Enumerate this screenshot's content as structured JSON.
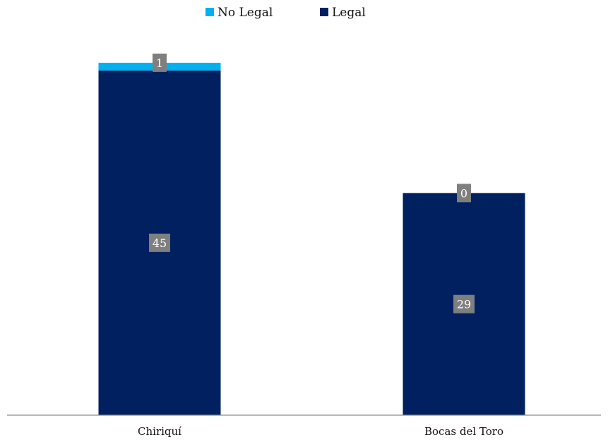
{
  "chart_data": {
    "type": "bar",
    "stacked": true,
    "categories": [
      "Chiriquí",
      "Bocas del Toro"
    ],
    "series": [
      {
        "name": "Legal",
        "values": [
          45,
          29
        ],
        "color": "#002060"
      },
      {
        "name": "No Legal",
        "values": [
          1,
          0
        ],
        "color": "#00B0F0"
      }
    ],
    "legend_order": [
      "No Legal",
      "Legal"
    ],
    "legend_position": "top",
    "ylim": [
      0,
      48
    ],
    "grid": false,
    "show_y_axis": false,
    "data_label_bg": "#7F7F7F",
    "axis_color": "#8C8C8C"
  }
}
